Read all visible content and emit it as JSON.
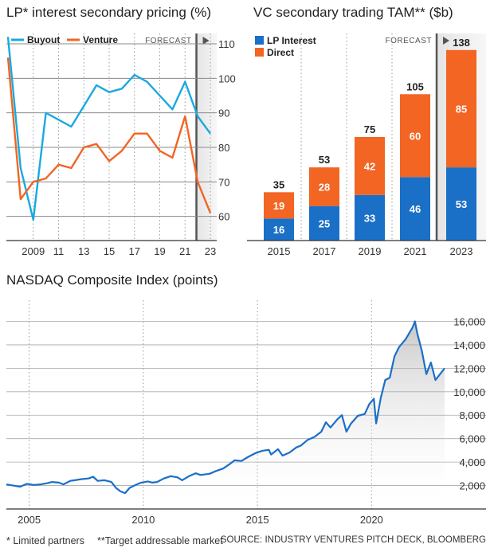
{
  "colors": {
    "buyout": "#1aa9e0",
    "venture": "#f26522",
    "lp": "#1a6fc7",
    "direct": "#f26522",
    "nasdaq": "#1a6fc7"
  },
  "footer": {
    "note1": "* Limited partners",
    "note2": "**Target addressable market",
    "source": "SOURCE: INDUSTRY VENTURES PITCH DECK, BLOOMBERG"
  },
  "chart_data": [
    {
      "type": "line",
      "title": "LP* interest secondary pricing (%)",
      "forecast_label": "FORECAST",
      "x": [
        2007,
        2008,
        2009,
        2010,
        2011,
        2012,
        2013,
        2014,
        2015,
        2016,
        2017,
        2018,
        2019,
        2020,
        2021,
        2022,
        2023
      ],
      "x_tick_labels": [
        "2009",
        "11",
        "13",
        "15",
        "17",
        "19",
        "21",
        "23"
      ],
      "x_tick_values": [
        2009,
        2011,
        2013,
        2015,
        2017,
        2019,
        2021,
        2023
      ],
      "y_ticks": [
        60,
        70,
        80,
        90,
        100,
        110
      ],
      "ylim": [
        53,
        113
      ],
      "forecast_start": 2021.9,
      "legend_position": "top-left",
      "grid": true,
      "series": [
        {
          "name": "Buyout",
          "values": [
            112,
            74,
            59,
            90,
            88,
            86,
            92,
            98,
            96,
            97,
            101,
            99,
            95,
            91,
            99,
            89,
            84
          ]
        },
        {
          "name": "Venture",
          "values": [
            106,
            65,
            70,
            71,
            75,
            74,
            80,
            81,
            76,
            79,
            84,
            84,
            79,
            77,
            89,
            70,
            61
          ]
        }
      ]
    },
    {
      "type": "bar",
      "title": "VC secondary trading TAM** ($b)",
      "forecast_label": "FORECAST",
      "categories": [
        "2015",
        "2017",
        "2019",
        "2021",
        "2023"
      ],
      "legend_position": "top-left",
      "series": [
        {
          "name": "LP Interest",
          "values": [
            16,
            25,
            33,
            46,
            53
          ]
        },
        {
          "name": "Direct",
          "values": [
            19,
            28,
            42,
            60,
            85
          ]
        }
      ],
      "totals": [
        35,
        53,
        75,
        105,
        138
      ]
    },
    {
      "type": "line",
      "title": "NASDAQ Composite Index (points)",
      "x_tick_labels": [
        "2005",
        "2010",
        "2015",
        "2020"
      ],
      "x_tick_values": [
        2005,
        2010,
        2015,
        2020
      ],
      "y_ticks": [
        2000,
        4000,
        6000,
        8000,
        10000,
        12000,
        14000,
        16000
      ],
      "y_tick_labels": [
        "2,000",
        "4,000",
        "6,000",
        "8,000",
        "10,000",
        "12,000",
        "14,000",
        "16,000"
      ],
      "xlim": [
        2004.0,
        2023.2
      ],
      "ylim": [
        0,
        17800
      ],
      "grid": true,
      "series": [
        {
          "name": "NASDAQ",
          "points": [
            [
              2004.0,
              2100
            ],
            [
              2004.3,
              2000
            ],
            [
              2004.6,
              1900
            ],
            [
              2004.9,
              2150
            ],
            [
              2005.2,
              2050
            ],
            [
              2005.5,
              2100
            ],
            [
              2005.8,
              2200
            ],
            [
              2006.0,
              2300
            ],
            [
              2006.3,
              2250
            ],
            [
              2006.5,
              2100
            ],
            [
              2006.8,
              2400
            ],
            [
              2007.0,
              2450
            ],
            [
              2007.3,
              2550
            ],
            [
              2007.6,
              2600
            ],
            [
              2007.8,
              2750
            ],
            [
              2008.0,
              2400
            ],
            [
              2008.3,
              2450
            ],
            [
              2008.6,
              2300
            ],
            [
              2008.8,
              1800
            ],
            [
              2009.0,
              1500
            ],
            [
              2009.2,
              1350
            ],
            [
              2009.4,
              1800
            ],
            [
              2009.6,
              2000
            ],
            [
              2009.9,
              2250
            ],
            [
              2010.2,
              2350
            ],
            [
              2010.4,
              2250
            ],
            [
              2010.6,
              2300
            ],
            [
              2010.9,
              2600
            ],
            [
              2011.2,
              2800
            ],
            [
              2011.5,
              2700
            ],
            [
              2011.7,
              2450
            ],
            [
              2012.0,
              2800
            ],
            [
              2012.3,
              3050
            ],
            [
              2012.5,
              2900
            ],
            [
              2012.9,
              3000
            ],
            [
              2013.2,
              3250
            ],
            [
              2013.5,
              3450
            ],
            [
              2013.8,
              3850
            ],
            [
              2014.0,
              4150
            ],
            [
              2014.3,
              4100
            ],
            [
              2014.6,
              4450
            ],
            [
              2014.9,
              4750
            ],
            [
              2015.2,
              4950
            ],
            [
              2015.5,
              5050
            ],
            [
              2015.6,
              4650
            ],
            [
              2015.9,
              5100
            ],
            [
              2016.1,
              4550
            ],
            [
              2016.4,
              4800
            ],
            [
              2016.7,
              5250
            ],
            [
              2016.9,
              5400
            ],
            [
              2017.2,
              5900
            ],
            [
              2017.5,
              6150
            ],
            [
              2017.8,
              6600
            ],
            [
              2018.0,
              7400
            ],
            [
              2018.2,
              6950
            ],
            [
              2018.5,
              7650
            ],
            [
              2018.7,
              8000
            ],
            [
              2018.9,
              6600
            ],
            [
              2019.1,
              7300
            ],
            [
              2019.4,
              7950
            ],
            [
              2019.7,
              8100
            ],
            [
              2019.9,
              8950
            ],
            [
              2020.1,
              9400
            ],
            [
              2020.2,
              7300
            ],
            [
              2020.4,
              9450
            ],
            [
              2020.6,
              11000
            ],
            [
              2020.8,
              11200
            ],
            [
              2021.0,
              13000
            ],
            [
              2021.2,
              13800
            ],
            [
              2021.5,
              14500
            ],
            [
              2021.8,
              15500
            ],
            [
              2021.9,
              16000
            ],
            [
              2022.0,
              15000
            ],
            [
              2022.2,
              13500
            ],
            [
              2022.4,
              11500
            ],
            [
              2022.6,
              12500
            ],
            [
              2022.8,
              11000
            ],
            [
              2023.0,
              11500
            ],
            [
              2023.2,
              12000
            ]
          ]
        }
      ]
    }
  ]
}
